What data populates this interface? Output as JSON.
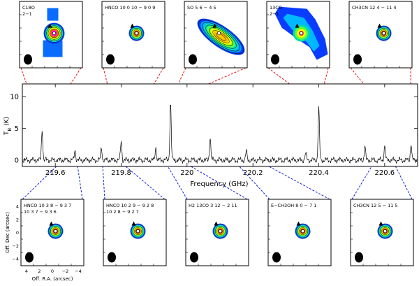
{
  "chart_data": {
    "type": "line",
    "xlabel": "Frequency (GHz)",
    "ylabel": "T_B (K)",
    "xlim": [
      219.5,
      220.7
    ],
    "ylim": [
      -1,
      12
    ],
    "x_ticks": [
      "219.6",
      "219.8",
      "220",
      "220.2",
      "220.4",
      "220.6"
    ],
    "y_ticks": [
      "0",
      "5",
      "10"
    ],
    "peaks": [
      {
        "x": 219.56,
        "y": 4.8
      },
      {
        "x": 219.66,
        "y": 1.6
      },
      {
        "x": 219.74,
        "y": 2.0
      },
      {
        "x": 219.8,
        "y": 3.0
      },
      {
        "x": 219.905,
        "y": 2.0
      },
      {
        "x": 219.95,
        "y": 9.2
      },
      {
        "x": 220.07,
        "y": 3.8
      },
      {
        "x": 220.18,
        "y": 1.4
      },
      {
        "x": 220.36,
        "y": 1.0
      },
      {
        "x": 220.4,
        "y": 8.3
      },
      {
        "x": 220.54,
        "y": 2.2
      },
      {
        "x": 220.6,
        "y": 2.2
      },
      {
        "x": 220.68,
        "y": 2.6
      }
    ],
    "maps_top": [
      {
        "label": [
          "C18O",
          "2−1"
        ],
        "freq": 219.56,
        "shape": "compact-ext"
      },
      {
        "label": [
          "HNCO 10 0 10 − 9 0 9"
        ],
        "freq": 219.8,
        "shape": "compact"
      },
      {
        "label": [
          "SO 5 6 − 4 5"
        ],
        "freq": 219.95,
        "shape": "elongated"
      },
      {
        "label": [
          "13CO",
          "2−1"
        ],
        "freq": 220.4,
        "shape": "extended"
      },
      {
        "label": [
          "CH3CN 12 4 − 11 4"
        ],
        "freq": 220.68,
        "shape": "compact"
      }
    ],
    "maps_bottom": [
      {
        "label": [
          "HNCO 10 3 8 − 9 3 7",
          "10 3 7 − 9 3 6"
        ],
        "freq": 219.66,
        "shape": "compact"
      },
      {
        "label": [
          "HNCO 10 2 9 − 9 2 8",
          "10 2 8 − 9 2 7"
        ],
        "freq": 219.74,
        "shape": "compact"
      },
      {
        "label": [
          "H2 13CO 3 12 − 2 11"
        ],
        "freq": 219.905,
        "shape": "compact"
      },
      {
        "label": [
          "E−CH3OH 8 0 − 7 1"
        ],
        "freq": 220.07,
        "shape": "compact"
      },
      {
        "label": [
          "CH3CN 12 5 − 11 5"
        ],
        "freq": 220.6,
        "shape": "compact"
      }
    ],
    "map_axes": {
      "xlabel": "Off. R.A. (arcsec)",
      "ylabel": "Off. Dec (arcsec)",
      "x_ticks": [
        "4",
        "2",
        "0",
        "−2",
        "−4"
      ],
      "y_ticks": [
        "4",
        "2",
        "0",
        "−2",
        "−4"
      ]
    }
  }
}
